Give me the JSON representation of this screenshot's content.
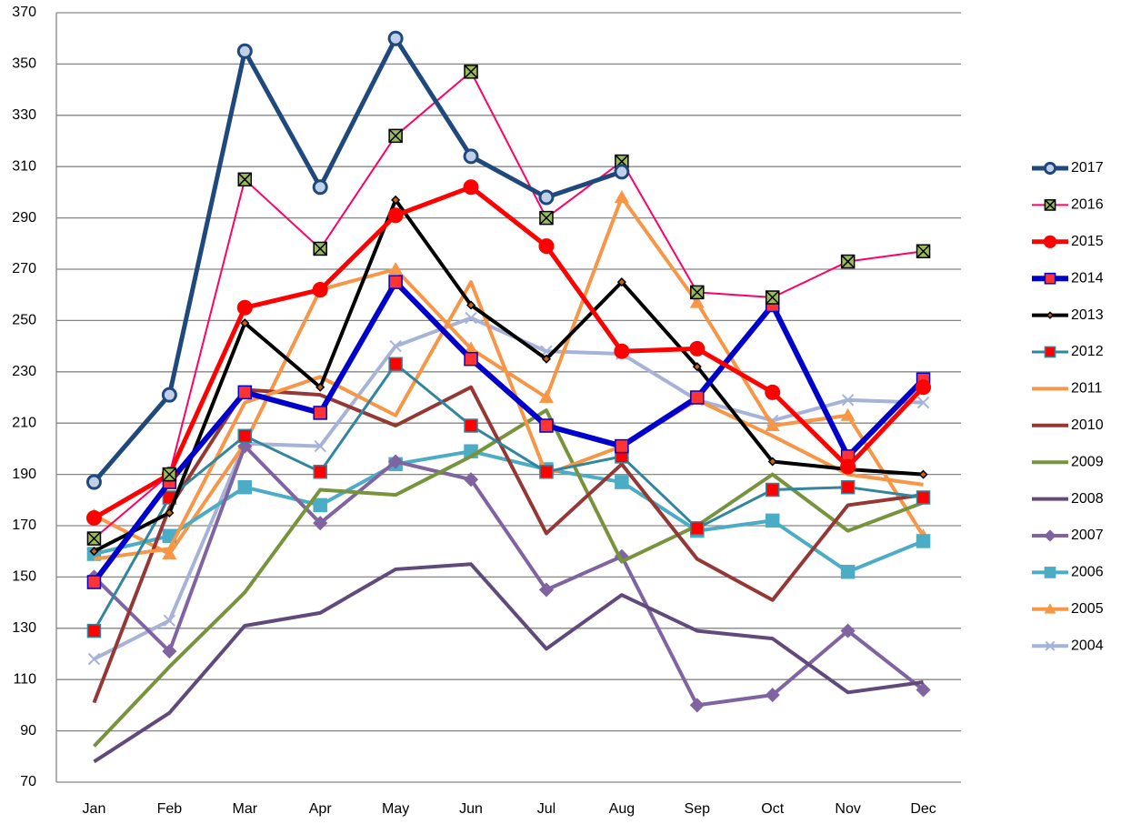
{
  "chart_data": {
    "type": "line",
    "categories": [
      "Jan",
      "Feb",
      "Mar",
      "Apr",
      "May",
      "Jun",
      "Jul",
      "Aug",
      "Sep",
      "Oct",
      "Nov",
      "Dec"
    ],
    "ylim": [
      70,
      370
    ],
    "yticks": [
      70,
      90,
      110,
      130,
      150,
      170,
      190,
      210,
      230,
      250,
      270,
      290,
      310,
      330,
      350,
      370
    ],
    "grid": true,
    "legend": "right",
    "series": [
      {
        "name": "2017",
        "color": "#1f497d",
        "marker": "circle",
        "width": 5,
        "values": [
          187,
          221,
          355,
          302,
          360,
          314,
          298,
          308,
          null,
          null,
          null,
          null
        ]
      },
      {
        "name": "2016",
        "color": "#ff0066",
        "marker": "xsquare",
        "marker_color": "#9bbb59",
        "width": 2,
        "values": [
          165,
          190,
          305,
          278,
          322,
          347,
          290,
          312,
          261,
          259,
          273,
          277
        ]
      },
      {
        "name": "2015",
        "color": "#ff0000",
        "marker": "circle",
        "width": 5,
        "values": [
          173,
          190,
          255,
          262,
          291,
          302,
          279,
          238,
          239,
          222,
          193,
          224
        ]
      },
      {
        "name": "2014",
        "color": "#0000cc",
        "marker": "square",
        "marker_color": "#ff3333",
        "width": 6,
        "values": [
          148,
          187,
          222,
          214,
          265,
          235,
          209,
          201,
          220,
          256,
          197,
          227
        ]
      },
      {
        "name": "2013",
        "color": "#000000",
        "marker": "diamond",
        "marker_color": "#c0651a",
        "width": 4,
        "values": [
          160,
          175,
          249,
          224,
          297,
          256,
          235,
          265,
          232,
          195,
          192,
          190
        ]
      },
      {
        "name": "2012",
        "color": "#31859c",
        "marker": "square",
        "marker_color": "#ff0000",
        "width": 3,
        "values": [
          129,
          181,
          205,
          191,
          233,
          209,
          191,
          197,
          169,
          184,
          185,
          181
        ]
      },
      {
        "name": "2011",
        "color": "#f79646",
        "marker": "none",
        "width": 4,
        "values": [
          157,
          161,
          218,
          228,
          213,
          265,
          190,
          201,
          219,
          205,
          190,
          186
        ]
      },
      {
        "name": "2010",
        "color": "#953735",
        "marker": "none",
        "width": 4,
        "values": [
          101,
          177,
          223,
          221,
          209,
          224,
          167,
          194,
          157,
          141,
          178,
          182
        ]
      },
      {
        "name": "2009",
        "color": "#77933c",
        "marker": "none",
        "width": 4,
        "values": [
          84,
          115,
          144,
          184,
          182,
          197,
          215,
          156,
          170,
          190,
          168,
          179
        ]
      },
      {
        "name": "2008",
        "color": "#604a7b",
        "marker": "none",
        "width": 4,
        "values": [
          78,
          97,
          131,
          136,
          153,
          155,
          122,
          143,
          129,
          126,
          105,
          109
        ]
      },
      {
        "name": "2007",
        "color": "#8064a2",
        "marker": "diamond",
        "width": 4,
        "values": [
          150,
          121,
          201,
          171,
          195,
          188,
          145,
          158,
          100,
          104,
          129,
          106
        ]
      },
      {
        "name": "2006",
        "color": "#4bacc6",
        "marker": "square",
        "width": 4,
        "values": [
          159,
          166,
          185,
          178,
          194,
          199,
          192,
          187,
          168,
          172,
          152,
          164
        ]
      },
      {
        "name": "2005",
        "color": "#f79646",
        "marker": "triangle",
        "width": 4,
        "values": [
          174,
          159,
          202,
          262,
          270,
          239,
          220,
          298,
          257,
          209,
          213,
          166
        ]
      },
      {
        "name": "2004",
        "color": "#a6b3d6",
        "marker": "x",
        "width": 4,
        "values": [
          118,
          133,
          202,
          201,
          240,
          251,
          238,
          237,
          219,
          211,
          219,
          218
        ]
      }
    ]
  }
}
